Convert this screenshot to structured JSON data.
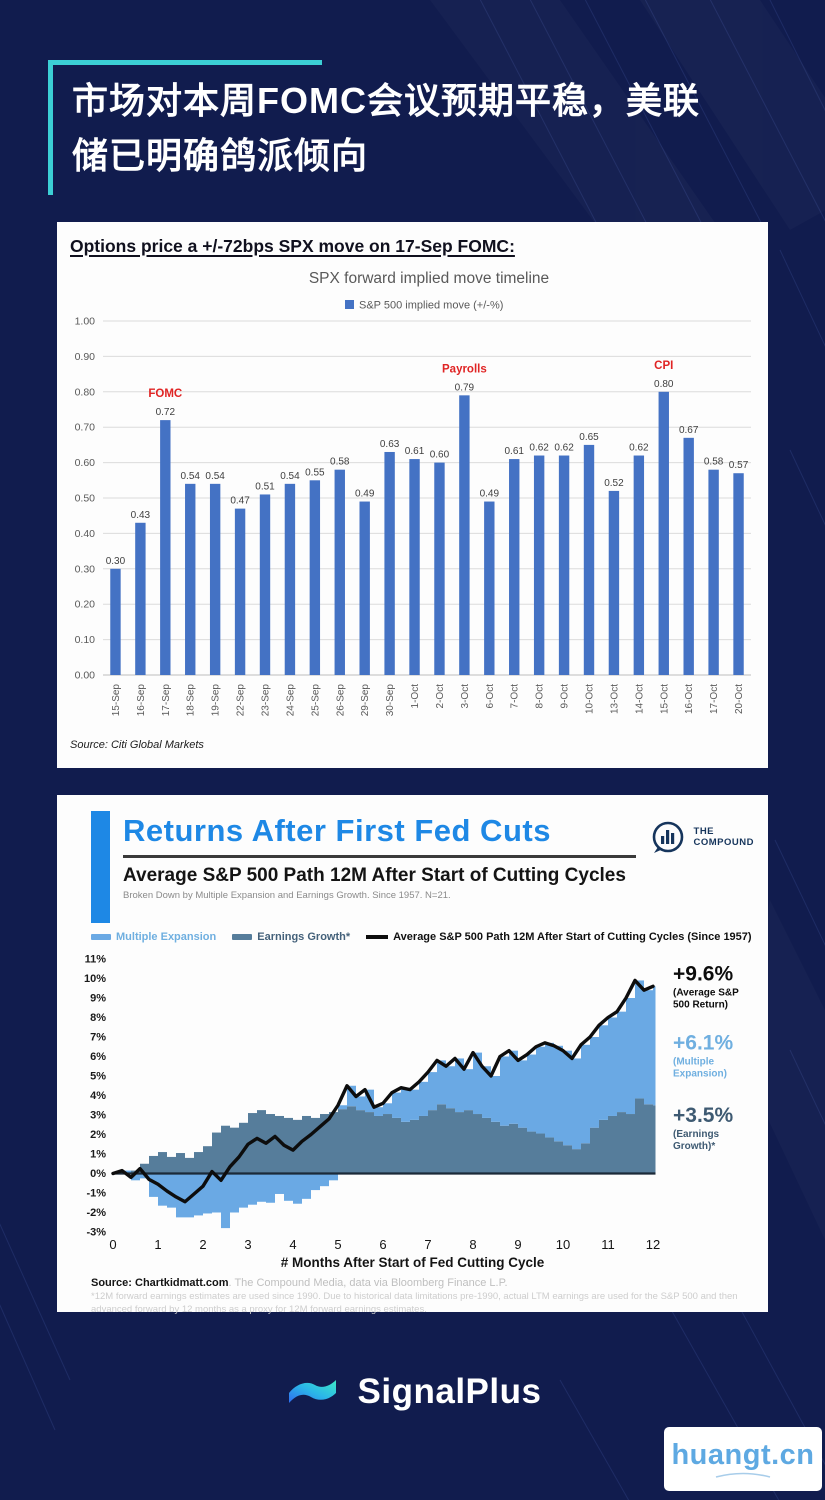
{
  "page": {
    "background": "#111c4e",
    "accent_cyan": "#3ccfd5"
  },
  "title": {
    "line1": "市场对本周FOMC会议预期平稳，美联",
    "line2": "储已明确鸽派倾向"
  },
  "chart1": {
    "heading": "Options price a +/-72bps SPX move on 17-Sep FOMC:",
    "source": "Source: Citi Global Markets"
  },
  "chart2": {
    "title": "Returns After First Fed Cuts",
    "brand": {
      "line1": "THE",
      "line2": "COMPOUND"
    },
    "subtitle": "Average S&P 500 Path 12M After Start of Cutting Cycles",
    "note": "Broken Down by Multiple Expansion and Earnings Growth. Since 1957. N=21.",
    "legend": {
      "expansion": "Multiple Expansion",
      "earnings": "Earnings Growth*",
      "average": "Average S&P 500 Path 12M After Start of Cutting Cycles (Since 1957)"
    },
    "xlabel": "# Months After Start of Fed Cutting Cycle",
    "source_bold": "Source: Chartkidmatt.com",
    "source_rest": ". The Compound Media, data via Bloomberg Finance L.P.",
    "disclaimer": "*12M forward earnings estimates are used since 1990. Due to historical data limitations pre-1990, actual LTM earnings are used for the S&P 500 and then advanced forward by 12 months as a proxy for 12M forward earnings estimates."
  },
  "footer": {
    "brand": "SignalPlus",
    "watermark": "huangt.cn"
  },
  "chart_data": [
    {
      "type": "bar",
      "title": "SPX forward implied move timeline",
      "legend": "S&P 500 implied move (+/-%)",
      "categories": [
        "15-Sep",
        "16-Sep",
        "17-Sep",
        "18-Sep",
        "19-Sep",
        "22-Sep",
        "23-Sep",
        "24-Sep",
        "25-Sep",
        "26-Sep",
        "29-Sep",
        "30-Sep",
        "1-Oct",
        "2-Oct",
        "3-Oct",
        "6-Oct",
        "7-Oct",
        "8-Oct",
        "9-Oct",
        "10-Oct",
        "13-Oct",
        "14-Oct",
        "15-Oct",
        "16-Oct",
        "17-Oct",
        "20-Oct"
      ],
      "values": [
        0.3,
        0.43,
        0.72,
        0.54,
        0.54,
        0.47,
        0.51,
        0.54,
        0.55,
        0.58,
        0.49,
        0.63,
        0.61,
        0.6,
        0.79,
        0.49,
        0.61,
        0.62,
        0.62,
        0.65,
        0.52,
        0.62,
        0.8,
        0.67,
        0.58,
        0.57
      ],
      "events": [
        {
          "index": 2,
          "category": "17-Sep",
          "label": "FOMC"
        },
        {
          "index": 14,
          "category": "3-Oct",
          "label": "Payrolls"
        },
        {
          "index": 22,
          "category": "15-Oct",
          "label": "CPI"
        }
      ],
      "ylim": [
        0,
        1
      ],
      "ytick_step": 0.1,
      "grid": true,
      "bar_color": "#4472c4",
      "event_color": "#e02424"
    },
    {
      "type": "area",
      "title": "Average S&P 500 Path 12M After Start of Cutting Cycles",
      "xlabel": "# Months After Start of Fed Cutting Cycle",
      "ylim": [
        -3,
        11
      ],
      "xlim": [
        0,
        12
      ],
      "grid": false,
      "legend_position": "top",
      "series": [
        {
          "name": "Multiple Expansion",
          "color": "#6aa9e4",
          "note": "derived: avg_path minus earnings_growth; drawn below zero when negative"
        },
        {
          "name": "Earnings Growth",
          "color": "#567d9b"
        },
        {
          "name": "Average S&P 500 Path 12M After Start of Cutting Cycles (Since 1957)",
          "color": "#0d0d0d"
        }
      ],
      "x": [
        0,
        0.2,
        0.4,
        0.6,
        0.8,
        1.0,
        1.2,
        1.4,
        1.6,
        1.8,
        2.0,
        2.2,
        2.4,
        2.6,
        2.8,
        3.0,
        3.2,
        3.4,
        3.6,
        3.8,
        4.0,
        4.2,
        4.4,
        4.6,
        4.8,
        5.0,
        5.2,
        5.4,
        5.6,
        5.8,
        6.0,
        6.2,
        6.4,
        6.6,
        6.8,
        7.0,
        7.2,
        7.4,
        7.6,
        7.8,
        8.0,
        8.2,
        8.4,
        8.6,
        8.8,
        9.0,
        9.2,
        9.4,
        9.6,
        9.8,
        10.0,
        10.2,
        10.4,
        10.6,
        10.8,
        11.0,
        11.2,
        11.4,
        11.6,
        11.8,
        12.0
      ],
      "earnings_growth": [
        0.0,
        0.05,
        0.15,
        0.5,
        0.9,
        1.1,
        0.85,
        1.05,
        0.8,
        1.1,
        1.4,
        2.1,
        2.45,
        2.35,
        2.6,
        3.1,
        3.25,
        3.05,
        2.95,
        2.85,
        2.75,
        2.95,
        2.85,
        3.05,
        3.15,
        3.3,
        3.45,
        3.25,
        3.15,
        2.95,
        3.05,
        2.85,
        2.65,
        2.75,
        2.95,
        3.25,
        3.55,
        3.35,
        3.15,
        3.25,
        3.05,
        2.85,
        2.65,
        2.45,
        2.55,
        2.35,
        2.15,
        2.05,
        1.85,
        1.65,
        1.45,
        1.25,
        1.55,
        2.35,
        2.75,
        2.95,
        3.15,
        3.05,
        3.85,
        3.55,
        3.5
      ],
      "avg_path": [
        0.0,
        0.15,
        -0.2,
        0.25,
        -0.3,
        -0.55,
        -0.9,
        -1.2,
        -1.45,
        -1.05,
        -0.65,
        0.1,
        -0.35,
        0.35,
        0.85,
        1.5,
        1.8,
        1.55,
        1.9,
        1.45,
        1.2,
        1.65,
        2.0,
        2.4,
        2.8,
        3.5,
        4.5,
        3.95,
        4.3,
        3.4,
        3.6,
        4.15,
        4.4,
        4.3,
        4.7,
        5.2,
        5.8,
        5.5,
        5.9,
        5.35,
        6.2,
        5.5,
        5.0,
        6.0,
        6.3,
        5.8,
        6.1,
        6.5,
        6.7,
        6.55,
        6.3,
        5.9,
        6.6,
        7.0,
        7.6,
        8.0,
        8.3,
        9.0,
        9.9,
        9.4,
        9.6
      ],
      "annotations": [
        {
          "value": "+9.6%",
          "label_lines": [
            "(Average S&P",
            "500  Return)"
          ],
          "color": "#0d0d0d",
          "at_pct": 9.9
        },
        {
          "value": "+6.1%",
          "label_lines": [
            "(Multiple",
            "Expansion)"
          ],
          "color": "#6fafe0",
          "at_pct": 6.35
        },
        {
          "value": "+3.5%",
          "label_lines": [
            "(Earnings",
            "Growth)*"
          ],
          "color": "#3e5a72",
          "at_pct": 2.65
        }
      ]
    }
  ]
}
